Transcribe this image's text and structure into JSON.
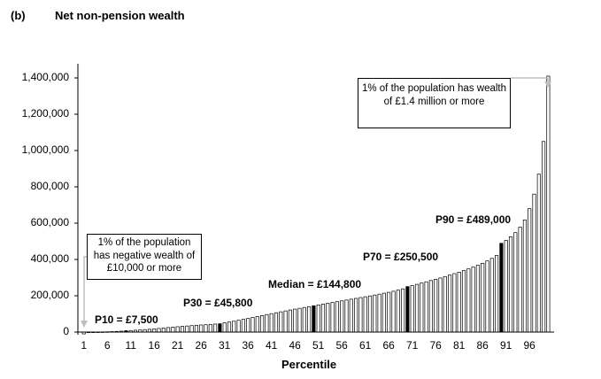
{
  "header": {
    "panel_letter": "(b)",
    "title": "Net non-pension wealth"
  },
  "colors": {
    "bar_fill": "#ffffff",
    "bar_highlight": "#000000",
    "axis": "#000000",
    "arrow": "#bfbfbf"
  },
  "annotations": {
    "top": "1% of the population has wealth of £1.4 million or more",
    "bottom": "1% of the population has negative wealth of £10,000 or more",
    "p10": "P10 = £7,500",
    "p30": "P30 = £45,800",
    "median": "Median = £144,800",
    "p70": "P70 = £250,500",
    "p90": "P90 = £489,000"
  },
  "chart_data": {
    "type": "bar",
    "title": "Net non-pension wealth",
    "xlabel": "Percentile",
    "ylabel": "",
    "ylim": [
      -10000,
      1500000
    ],
    "yticks": [
      0,
      200000,
      400000,
      600000,
      800000,
      1000000,
      1200000,
      1400000
    ],
    "ytick_labels": [
      "0",
      "200,000",
      "400,000",
      "600,000",
      "800,000",
      "1,000,000",
      "1,200,000",
      "1,400,000"
    ],
    "xtick_labels": [
      "1",
      "6",
      "11",
      "16",
      "21",
      "26",
      "31",
      "36",
      "41",
      "46",
      "51",
      "56",
      "61",
      "66",
      "71",
      "76",
      "81",
      "86",
      "91",
      "96"
    ],
    "highlighted_percentiles": [
      10,
      30,
      50,
      70,
      90
    ],
    "categories": [
      1,
      2,
      3,
      4,
      5,
      6,
      7,
      8,
      9,
      10,
      11,
      12,
      13,
      14,
      15,
      16,
      17,
      18,
      19,
      20,
      21,
      22,
      23,
      24,
      25,
      26,
      27,
      28,
      29,
      30,
      31,
      32,
      33,
      34,
      35,
      36,
      37,
      38,
      39,
      40,
      41,
      42,
      43,
      44,
      45,
      46,
      47,
      48,
      49,
      50,
      51,
      52,
      53,
      54,
      55,
      56,
      57,
      58,
      59,
      60,
      61,
      62,
      63,
      64,
      65,
      66,
      67,
      68,
      69,
      70,
      71,
      72,
      73,
      74,
      75,
      76,
      77,
      78,
      79,
      80,
      81,
      82,
      83,
      84,
      85,
      86,
      87,
      88,
      89,
      90,
      91,
      92,
      93,
      94,
      95,
      96,
      97,
      98,
      99,
      100
    ],
    "values": [
      -10000,
      -2000,
      0,
      300,
      800,
      1500,
      2500,
      3500,
      5000,
      7500,
      8500,
      10000,
      11500,
      13500,
      15500,
      17500,
      20000,
      22500,
      25000,
      27500,
      29500,
      31500,
      33500,
      35500,
      37500,
      39000,
      40500,
      42500,
      44000,
      45800,
      51000,
      55500,
      60000,
      65000,
      70000,
      75000,
      80500,
      85500,
      91000,
      96500,
      101500,
      106500,
      111500,
      116500,
      121500,
      126500,
      131000,
      135500,
      140000,
      144800,
      149500,
      154000,
      158500,
      163000,
      167500,
      172000,
      176500,
      181000,
      185500,
      190000,
      194500,
      199000,
      204000,
      209000,
      214000,
      219000,
      225000,
      231000,
      238000,
      250500,
      256000,
      263000,
      270000,
      277000,
      284000,
      291000,
      298000,
      306000,
      314000,
      322000,
      330000,
      339000,
      348000,
      358000,
      368000,
      379000,
      392000,
      406000,
      422000,
      489000,
      505000,
      525000,
      548000,
      578000,
      618000,
      680000,
      760000,
      870000,
      1050000,
      1410000
    ]
  }
}
